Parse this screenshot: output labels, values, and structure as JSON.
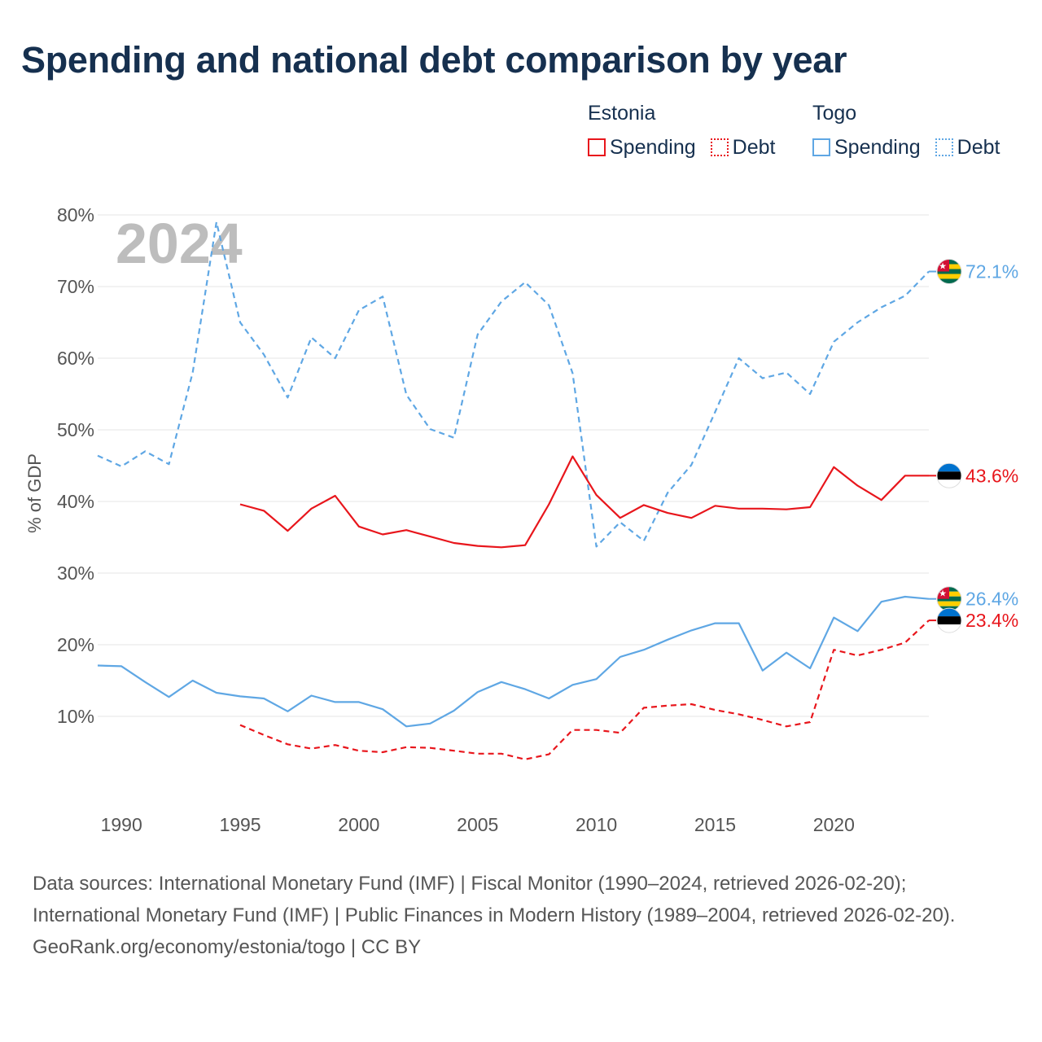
{
  "title": "Spending and national debt comparison by year",
  "legend": {
    "groups": [
      {
        "name": "Estonia",
        "color": "#e8161c",
        "items": [
          {
            "label": "Spending",
            "style": "solid"
          },
          {
            "label": "Debt",
            "style": "dotted"
          }
        ]
      },
      {
        "name": "Togo",
        "color": "#5fa7e4",
        "items": [
          {
            "label": "Spending",
            "style": "solid"
          },
          {
            "label": "Debt",
            "style": "dotted"
          }
        ]
      }
    ]
  },
  "chart_data": {
    "type": "line",
    "title": "Spending and national debt comparison by year",
    "year_label": "2024",
    "xlabel": "",
    "ylabel": "% of GDP",
    "xlim": [
      1989,
      2024
    ],
    "ylim": [
      0,
      80
    ],
    "x_ticks": [
      1990,
      1995,
      2000,
      2005,
      2010,
      2015,
      2020
    ],
    "y_ticks": [
      {
        "value": 10,
        "label": "10%"
      },
      {
        "value": 20,
        "label": "20%"
      },
      {
        "value": 30,
        "label": "30%"
      },
      {
        "value": 40,
        "label": "40%"
      },
      {
        "value": 50,
        "label": "50%"
      },
      {
        "value": 60,
        "label": "60%"
      },
      {
        "value": 70,
        "label": "70%"
      },
      {
        "value": 80,
        "label": "80%"
      }
    ],
    "series": [
      {
        "name": "Togo Debt",
        "country": "Togo",
        "metric": "Debt",
        "color": "#5fa7e4",
        "dashed": true,
        "start_year": 1989,
        "values": [
          46.4,
          44.9,
          47.0,
          45.2,
          58.0,
          79.0,
          65.0,
          60.5,
          54.5,
          62.9,
          60.0,
          66.7,
          68.6,
          54.9,
          50.1,
          48.9,
          63.3,
          67.9,
          70.6,
          67.4,
          57.9,
          33.7,
          37.1,
          34.5,
          41.2,
          45.1,
          52.5,
          60.0,
          57.2,
          58.0,
          55.0,
          62.3,
          65.0,
          67.1,
          68.7,
          72.1
        ],
        "end_label": "72.1%"
      },
      {
        "name": "Estonia Spending",
        "country": "Estonia",
        "metric": "Spending",
        "color": "#e8161c",
        "dashed": false,
        "start_year": 1995,
        "values": [
          39.6,
          38.7,
          35.9,
          39.0,
          40.8,
          36.5,
          35.4,
          36.0,
          35.1,
          34.2,
          33.8,
          33.6,
          33.9,
          39.6,
          46.3,
          40.9,
          37.7,
          39.5,
          38.4,
          37.7,
          39.4,
          39.0,
          39.0,
          38.9,
          39.2,
          44.8,
          42.2,
          40.2,
          43.6,
          43.6
        ],
        "end_label": "43.6%"
      },
      {
        "name": "Togo Spending",
        "country": "Togo",
        "metric": "Spending",
        "color": "#5fa7e4",
        "dashed": false,
        "start_year": 1989,
        "values": [
          17.1,
          17.0,
          14.8,
          12.7,
          15.0,
          13.3,
          12.8,
          12.5,
          10.7,
          12.9,
          12.0,
          12.0,
          11.0,
          8.6,
          9.0,
          10.8,
          13.4,
          14.8,
          13.8,
          12.5,
          14.4,
          15.2,
          18.3,
          19.3,
          20.7,
          22.0,
          23.0,
          23.0,
          16.4,
          18.9,
          16.7,
          23.8,
          21.9,
          26.0,
          26.7,
          26.4
        ],
        "end_label": "26.4%"
      },
      {
        "name": "Estonia Debt",
        "country": "Estonia",
        "metric": "Debt",
        "color": "#e8161c",
        "dashed": true,
        "start_year": 1995,
        "values": [
          8.8,
          7.4,
          6.1,
          5.5,
          6.0,
          5.2,
          5.0,
          5.7,
          5.6,
          5.2,
          4.8,
          4.8,
          4.0,
          4.7,
          8.1,
          8.1,
          7.7,
          11.2,
          11.5,
          11.7,
          10.9,
          10.3,
          9.5,
          8.6,
          9.2,
          19.3,
          18.5,
          19.3,
          20.3,
          23.4
        ],
        "end_label": "23.4%"
      }
    ]
  },
  "footer": {
    "sources": "Data sources: International Monetary Fund (IMF) | Fiscal Monitor (1990–2024, retrieved 2026-02-20); International Monetary Fund (IMF) | Public Finances in Modern History (1989–2004, retrieved 2026-02-20).",
    "credit": "GeoRank.org/economy/estonia/togo | CC BY"
  }
}
